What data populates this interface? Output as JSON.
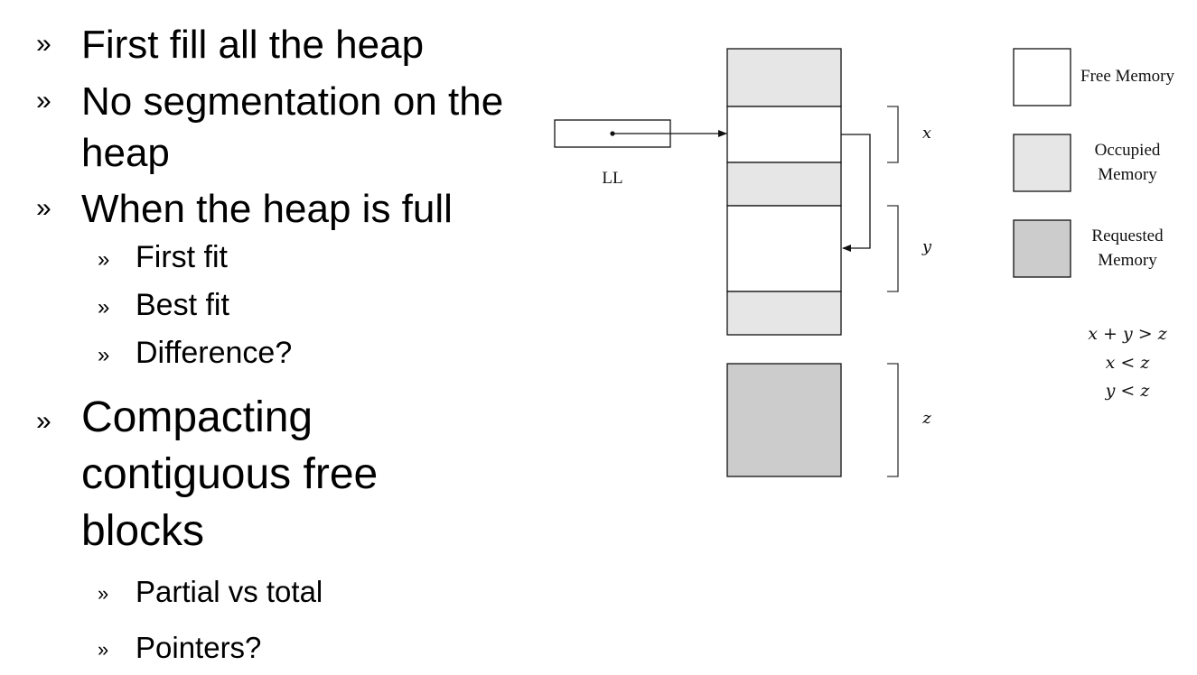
{
  "slide": {
    "bullets": [
      {
        "mark": "»",
        "text": "First fill all the heap"
      },
      {
        "mark": "»",
        "line1": "No segmentation on the",
        "line2": "heap"
      },
      {
        "mark": "»",
        "text": "When the heap is full"
      },
      {
        "mark": "»",
        "text": "First fit"
      },
      {
        "mark": "»",
        "text": "Best fit"
      },
      {
        "mark": "»",
        "text": "Difference?"
      },
      {
        "mark": "»",
        "line1": "Compacting",
        "line2": "contiguous free",
        "line3": "blocks"
      },
      {
        "mark": "»",
        "text": "Partial vs total"
      },
      {
        "mark": "»",
        "text": "Pointers?"
      }
    ]
  },
  "diagram": {
    "pointer_label": "LL",
    "brace_labels": {
      "x": "x",
      "y": "y",
      "z": "z"
    },
    "legend": {
      "free": "Free Memory",
      "occupied_line1": "Occupied",
      "occupied_line2": "Memory",
      "requested_line1": "Requested",
      "requested_line2": "Memory"
    },
    "conditions": [
      "x + y > z",
      "x < z",
      "y < z"
    ],
    "colors": {
      "free": "#ffffff",
      "occupied": "#e6e6e6",
      "requested": "#cccccc",
      "stroke": "#111111"
    }
  }
}
